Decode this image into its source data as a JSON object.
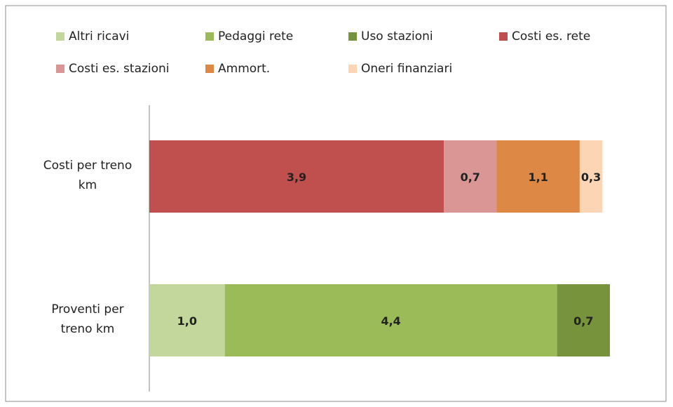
{
  "chart_data": {
    "type": "stacked-barh",
    "categories": [
      "Costi per treno km",
      "Proventi per treno km"
    ],
    "series": [
      {
        "name": "Altri ricavi",
        "color": "#c3d69b",
        "values": [
          null,
          1.0
        ],
        "value_labels": [
          null,
          "1,0"
        ]
      },
      {
        "name": "Pedaggi rete",
        "color": "#9bbb59",
        "values": [
          null,
          4.4
        ],
        "value_labels": [
          null,
          "4,4"
        ]
      },
      {
        "name": "Uso stazioni",
        "color": "#77933c",
        "values": [
          null,
          0.7
        ],
        "value_labels": [
          null,
          "0,7"
        ]
      },
      {
        "name": "Costi es. rete",
        "color": "#c0504d",
        "values": [
          3.9,
          null
        ],
        "value_labels": [
          "3,9",
          null
        ]
      },
      {
        "name": "Costi es. stazioni",
        "color": "#d99694",
        "values": [
          0.7,
          null
        ],
        "value_labels": [
          "0,7",
          null
        ]
      },
      {
        "name": "Ammort.",
        "color": "#dd8844",
        "values": [
          1.1,
          null
        ],
        "value_labels": [
          "1,1",
          null
        ]
      },
      {
        "name": "Oneri finanziari",
        "color": "#fcd5b5",
        "values": [
          0.3,
          null
        ],
        "value_labels": [
          "0,3",
          null
        ]
      }
    ],
    "legend": "top"
  }
}
